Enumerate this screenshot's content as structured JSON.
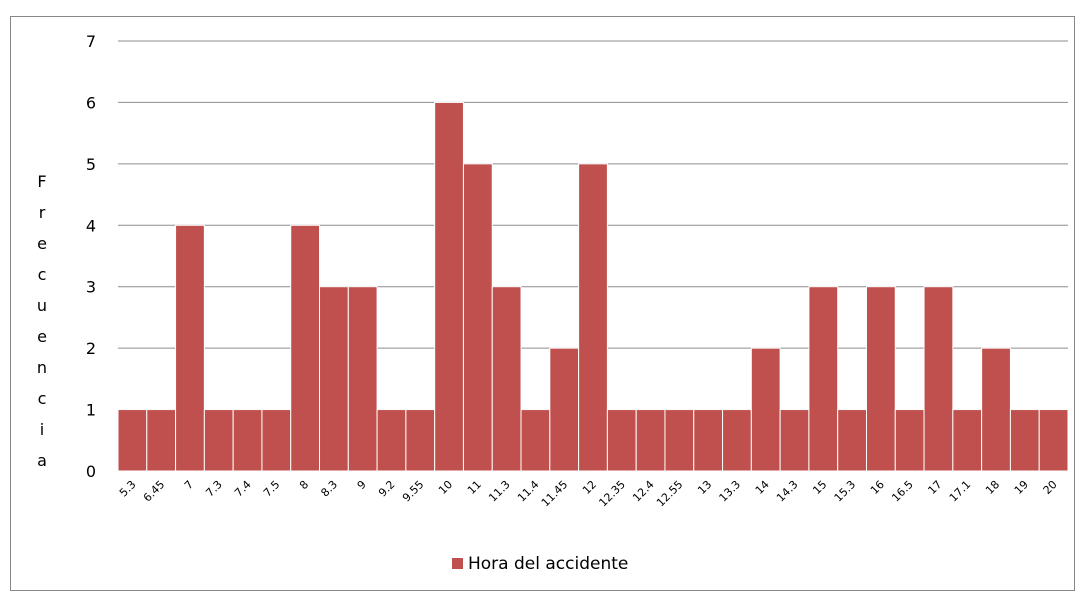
{
  "chart_data": {
    "type": "bar",
    "y_label": "Frecuencia",
    "categories": [
      "5.3",
      "6.45",
      "7",
      "7.3",
      "7.4",
      "7.5",
      "8",
      "8.3",
      "9",
      "9.2",
      "9.55",
      "10",
      "11",
      "11.3",
      "11.4",
      "11.45",
      "12",
      "12.35",
      "12.4",
      "12.55",
      "13",
      "13.3",
      "14",
      "14.3",
      "15",
      "15.3",
      "16",
      "16.5",
      "17",
      "17.1",
      "18",
      "19",
      "20"
    ],
    "series": [
      {
        "name": "Hora del accidente",
        "color": "#c0504d",
        "values": [
          1,
          1,
          4,
          1,
          1,
          1,
          4,
          3,
          3,
          1,
          1,
          6,
          5,
          3,
          1,
          2,
          5,
          1,
          1,
          1,
          1,
          1,
          2,
          1,
          3,
          1,
          3,
          1,
          3,
          1,
          2,
          1,
          1
        ]
      }
    ],
    "ylim": [
      0,
      7
    ],
    "yticks": [
      0,
      1,
      2,
      3,
      4,
      5,
      6,
      7
    ],
    "grid": true,
    "legend": "bottom"
  }
}
